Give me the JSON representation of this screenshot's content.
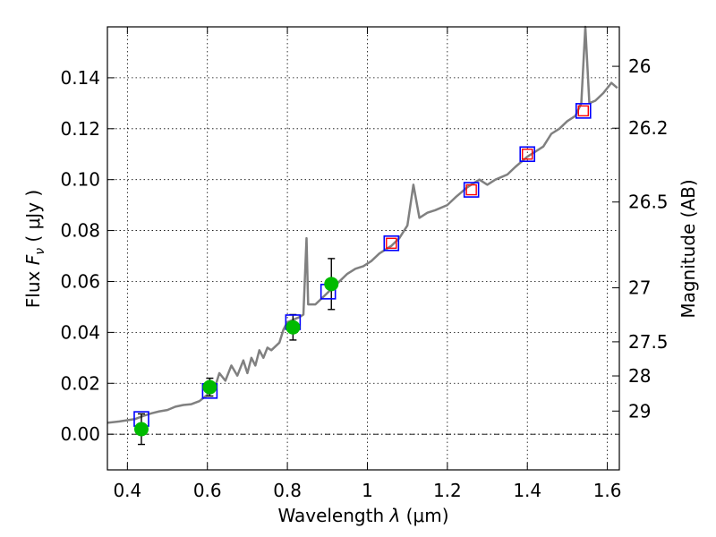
{
  "chart_data": {
    "type": "scatter",
    "xlabel_prefix": "Wavelength  ",
    "xlabel_symbol": "λ",
    "xlabel_unit": " (μm)",
    "ylabel_prefix": "Flux  ",
    "ylabel_symbol": "F",
    "ylabel_subscript": "ν",
    "ylabel_unit": "  ( μJy )",
    "y2label": "Magnitude (AB)",
    "xlim": [
      0.35,
      1.63
    ],
    "ylim": [
      -0.014,
      0.16
    ],
    "grid": true,
    "xticks": [
      {
        "value": 0.4,
        "label": "0.4"
      },
      {
        "value": 0.6,
        "label": "0.6"
      },
      {
        "value": 0.8,
        "label": "0.8"
      },
      {
        "value": 1.0,
        "label": "1"
      },
      {
        "value": 1.2,
        "label": "1.2"
      },
      {
        "value": 1.4,
        "label": "1.4"
      },
      {
        "value": 1.6,
        "label": "1.6"
      }
    ],
    "yticks": [
      {
        "value": 0.0,
        "label": "0.00"
      },
      {
        "value": 0.02,
        "label": "0.02"
      },
      {
        "value": 0.04,
        "label": "0.04"
      },
      {
        "value": 0.06,
        "label": "0.06"
      },
      {
        "value": 0.08,
        "label": "0.08"
      },
      {
        "value": 0.1,
        "label": "0.10"
      },
      {
        "value": 0.12,
        "label": "0.12"
      },
      {
        "value": 0.14,
        "label": "0.14"
      }
    ],
    "magnitude_ticks": [
      {
        "flux": 0.1445,
        "label": "26"
      },
      {
        "flux": 0.1202,
        "label": "26.2"
      },
      {
        "flux": 0.0912,
        "label": "26.5"
      },
      {
        "flux": 0.0575,
        "label": "27"
      },
      {
        "flux": 0.0363,
        "label": "27.5"
      },
      {
        "flux": 0.0229,
        "label": "28"
      },
      {
        "flux": 0.0091,
        "label": "29"
      }
    ],
    "zero_line": 0.0,
    "series": [
      {
        "kind": "spectrum",
        "color": "#808080",
        "points": [
          [
            0.35,
            0.0045
          ],
          [
            0.38,
            0.005
          ],
          [
            0.4,
            0.0055
          ],
          [
            0.42,
            0.006
          ],
          [
            0.44,
            0.0072
          ],
          [
            0.46,
            0.0082
          ],
          [
            0.48,
            0.009
          ],
          [
            0.5,
            0.0095
          ],
          [
            0.52,
            0.0108
          ],
          [
            0.54,
            0.0115
          ],
          [
            0.56,
            0.0118
          ],
          [
            0.58,
            0.013
          ],
          [
            0.6,
            0.0155
          ],
          [
            0.62,
            0.019
          ],
          [
            0.63,
            0.024
          ],
          [
            0.645,
            0.021
          ],
          [
            0.66,
            0.027
          ],
          [
            0.675,
            0.023
          ],
          [
            0.69,
            0.029
          ],
          [
            0.7,
            0.024
          ],
          [
            0.71,
            0.03
          ],
          [
            0.72,
            0.027
          ],
          [
            0.73,
            0.033
          ],
          [
            0.74,
            0.03
          ],
          [
            0.75,
            0.034
          ],
          [
            0.76,
            0.033
          ],
          [
            0.78,
            0.036
          ],
          [
            0.79,
            0.041
          ],
          [
            0.8,
            0.044
          ],
          [
            0.815,
            0.045
          ],
          [
            0.83,
            0.046
          ],
          [
            0.84,
            0.047
          ],
          [
            0.848,
            0.077
          ],
          [
            0.852,
            0.051
          ],
          [
            0.87,
            0.051
          ],
          [
            0.89,
            0.054
          ],
          [
            0.91,
            0.057
          ],
          [
            0.93,
            0.06
          ],
          [
            0.95,
            0.063
          ],
          [
            0.97,
            0.065
          ],
          [
            0.99,
            0.066
          ],
          [
            1.01,
            0.068
          ],
          [
            1.03,
            0.071
          ],
          [
            1.06,
            0.074
          ],
          [
            1.08,
            0.077
          ],
          [
            1.1,
            0.082
          ],
          [
            1.115,
            0.098
          ],
          [
            1.13,
            0.085
          ],
          [
            1.15,
            0.087
          ],
          [
            1.17,
            0.088
          ],
          [
            1.2,
            0.09
          ],
          [
            1.22,
            0.093
          ],
          [
            1.25,
            0.097
          ],
          [
            1.28,
            0.1
          ],
          [
            1.3,
            0.098
          ],
          [
            1.32,
            0.1
          ],
          [
            1.35,
            0.102
          ],
          [
            1.37,
            0.105
          ],
          [
            1.4,
            0.109
          ],
          [
            1.42,
            0.111
          ],
          [
            1.44,
            0.113
          ],
          [
            1.46,
            0.118
          ],
          [
            1.48,
            0.12
          ],
          [
            1.5,
            0.123
          ],
          [
            1.52,
            0.125
          ],
          [
            1.535,
            0.13
          ],
          [
            1.545,
            0.16
          ],
          [
            1.555,
            0.13
          ],
          [
            1.57,
            0.131
          ],
          [
            1.59,
            0.134
          ],
          [
            1.61,
            0.138
          ],
          [
            1.625,
            0.136
          ]
        ]
      },
      {
        "kind": "model-photometry",
        "marker": "open-square",
        "color": "#0000ff",
        "points": [
          [
            0.435,
            0.006
          ],
          [
            0.606,
            0.017
          ],
          [
            0.814,
            0.044
          ],
          [
            0.902,
            0.056
          ],
          [
            1.06,
            0.075
          ],
          [
            1.26,
            0.096
          ],
          [
            1.4,
            0.11
          ],
          [
            1.54,
            0.127
          ]
        ]
      },
      {
        "kind": "model-photometry-inner",
        "marker": "small-open-square",
        "color": "#ff0000",
        "points": [
          [
            1.06,
            0.075
          ],
          [
            1.26,
            0.096
          ],
          [
            1.4,
            0.11
          ],
          [
            1.54,
            0.127
          ]
        ]
      },
      {
        "kind": "observed-photometry",
        "marker": "filled-circle",
        "color": "#00bb00",
        "points": [
          {
            "x": 0.435,
            "y": 0.002,
            "yerr": 0.006
          },
          {
            "x": 0.606,
            "y": 0.0185,
            "yerr": 0.0035
          },
          {
            "x": 0.814,
            "y": 0.042,
            "yerr": 0.005
          },
          {
            "x": 0.91,
            "y": 0.059,
            "yerr": 0.01
          }
        ]
      }
    ]
  }
}
